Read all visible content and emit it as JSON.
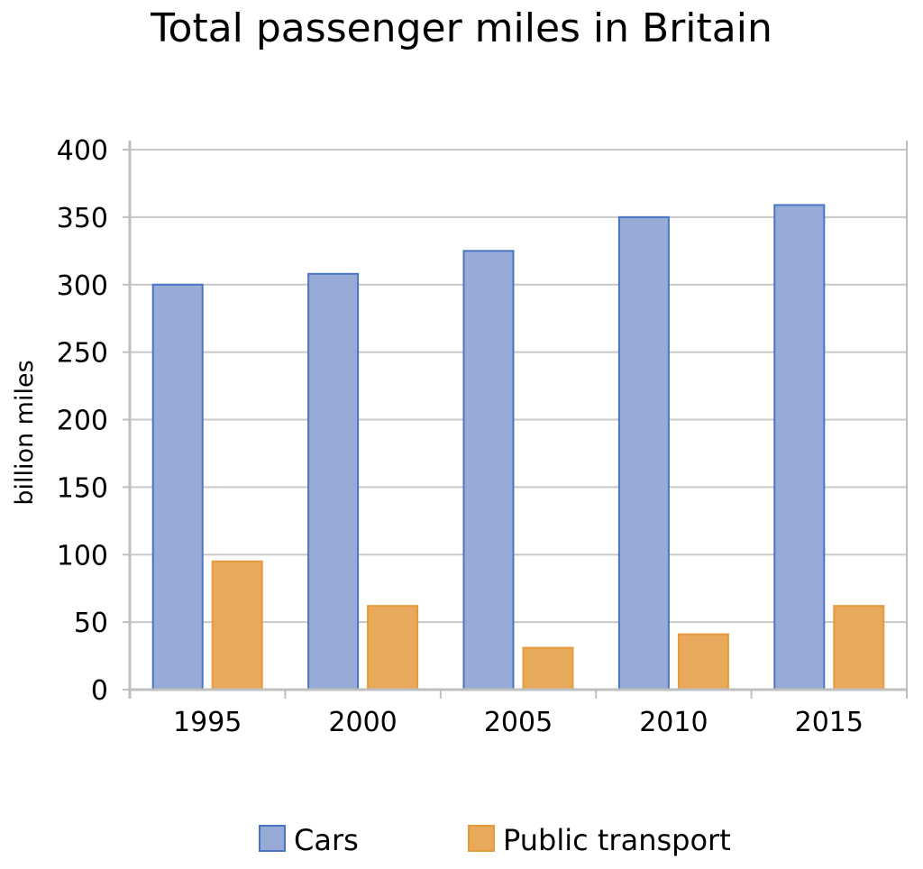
{
  "chart_data": {
    "type": "bar",
    "title": "Total passenger miles in Britain",
    "xlabel": "",
    "ylabel": "billion miles",
    "categories": [
      "1995",
      "2000",
      "2005",
      "2010",
      "2015"
    ],
    "series": [
      {
        "name": "Cars",
        "values": [
          300,
          308,
          325,
          350,
          359
        ],
        "color": "#97abd6",
        "stroke": "#4a74c4"
      },
      {
        "name": "Public transport",
        "values": [
          95,
          62,
          31,
          41,
          62
        ],
        "color": "#e8a95c",
        "stroke": "#e69b3a"
      }
    ],
    "ylim": [
      0,
      400
    ],
    "yticks": [
      0,
      50,
      100,
      150,
      200,
      250,
      300,
      350,
      400
    ],
    "grid": true,
    "legend_position": "bottom-center",
    "gridline_color": "#c8c8c8",
    "axis_color": "#bfbfbf"
  }
}
